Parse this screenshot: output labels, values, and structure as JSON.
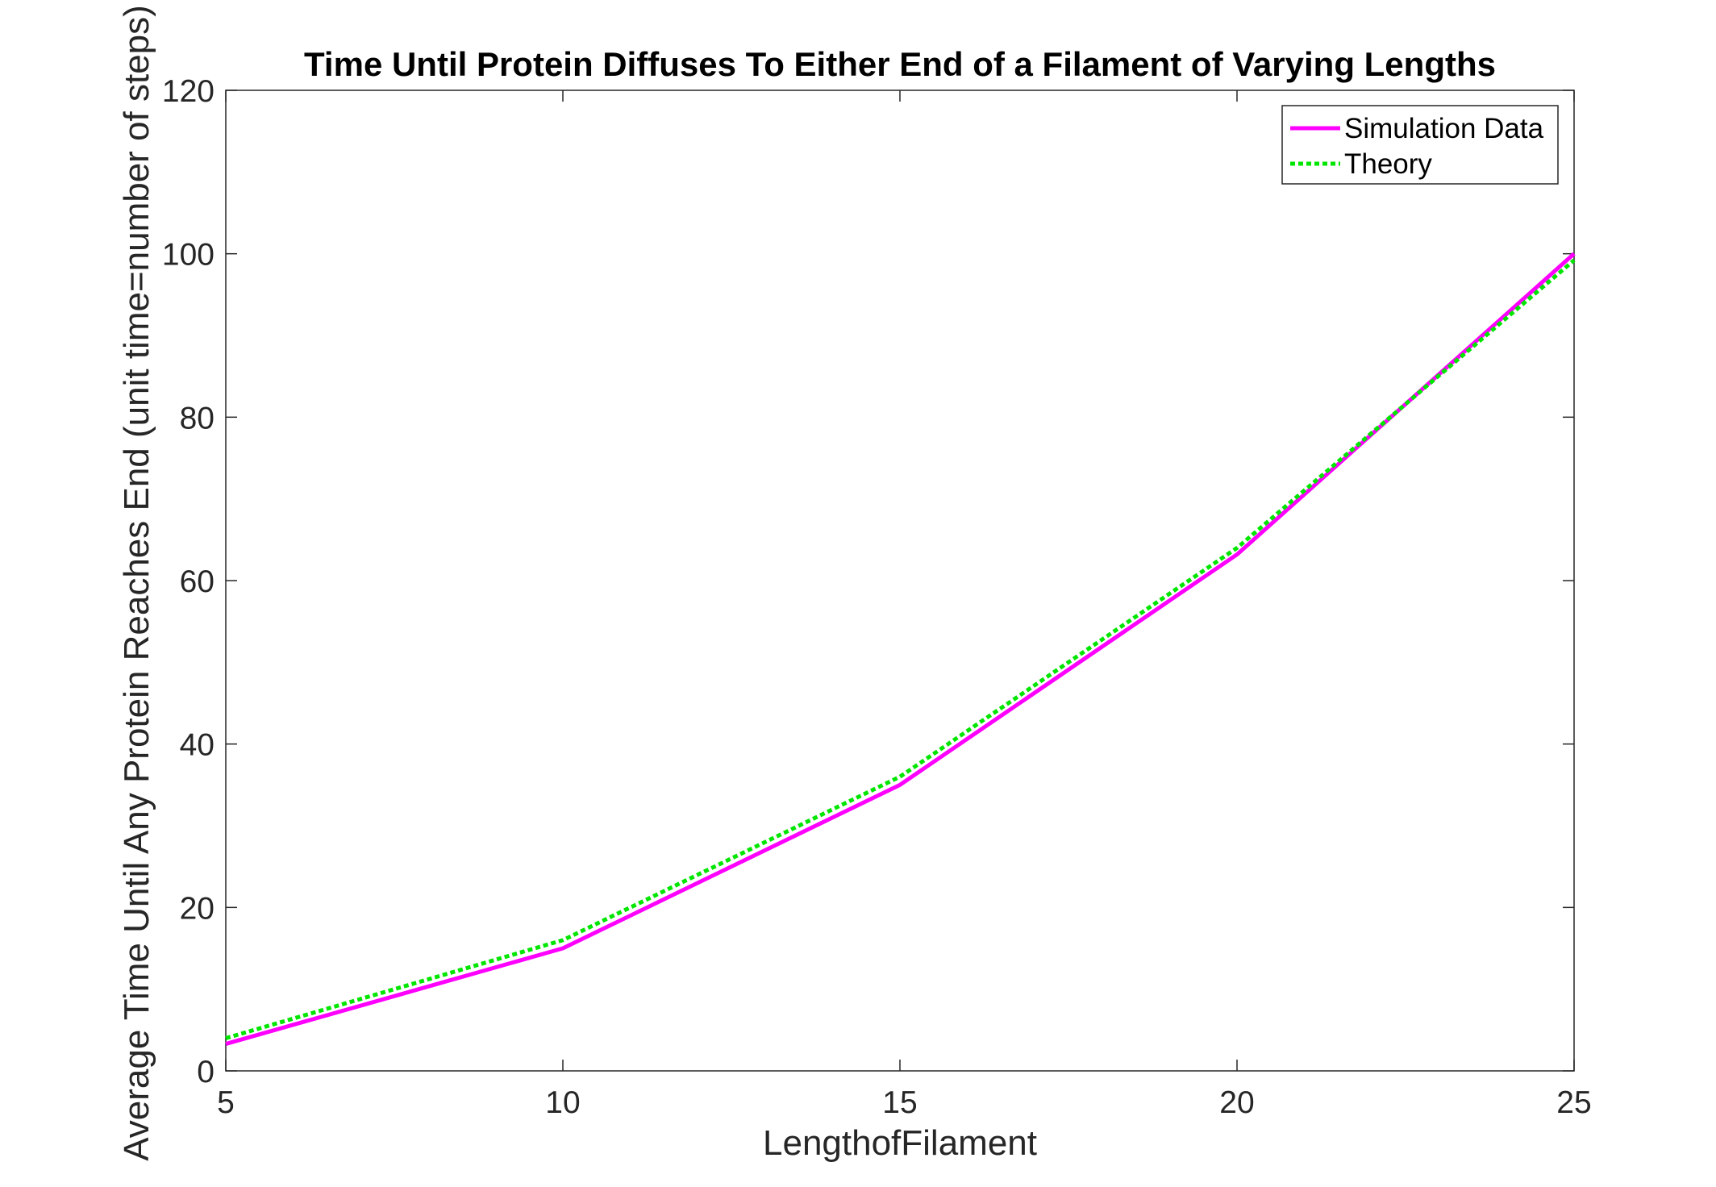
{
  "chart_data": {
    "type": "line",
    "title": "Time Until Protein Diffuses To Either End of a Filament of Varying Lengths",
    "xlabel": "LengthofFilament",
    "ylabel": "Average Time Until Any Protein Reaches End (unit time=number of steps)",
    "xlim": [
      5,
      25
    ],
    "ylim": [
      0,
      120
    ],
    "xticks": [
      5,
      10,
      15,
      20,
      25
    ],
    "yticks": [
      0,
      20,
      40,
      60,
      80,
      100,
      120
    ],
    "grid": false,
    "legend_position": "top-right",
    "x": [
      5,
      10,
      15,
      20,
      25
    ],
    "series": [
      {
        "name": "Simulation Data",
        "values": [
          3.3,
          15,
          35,
          63.2,
          100
        ],
        "color": "#ff00ff",
        "style": "solid"
      },
      {
        "name": "Theory",
        "values": [
          4,
          16,
          36,
          64,
          99.2
        ],
        "color": "#00e600",
        "style": "dotted"
      }
    ]
  }
}
